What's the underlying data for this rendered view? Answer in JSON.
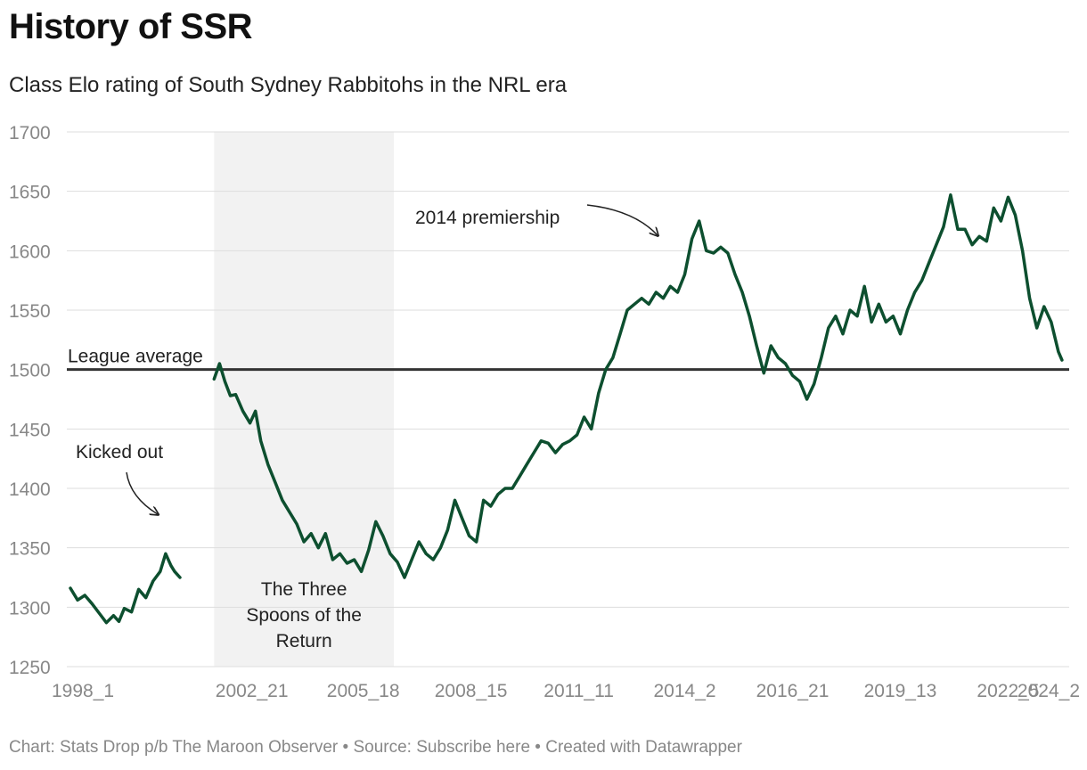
{
  "title": "History of SSR",
  "subtitle": "Class Elo rating of South Sydney Rabbitohs in the NRL era",
  "footer": "Chart: Stats Drop p/b The Maroon Observer • Source: Subscribe here • Created with Datawrapper",
  "colors": {
    "line": "#0d4f2f",
    "reference": "#333333",
    "shade": "#f2f2f2",
    "grid": "#dddddd"
  },
  "chart_data": {
    "type": "line",
    "title": "History of SSR",
    "subtitle": "Class Elo rating of South Sydney Rabbitohs in the NRL era",
    "xlabel": "",
    "ylabel": "",
    "ylim": [
      1250,
      1700
    ],
    "y_ticks": [
      1250,
      1300,
      1350,
      1400,
      1450,
      1500,
      1550,
      1600,
      1650,
      1700
    ],
    "x_ticks": [
      "1998_1",
      "2002_21",
      "2005_18",
      "2008_15",
      "2011_11",
      "2014_2",
      "2016_21",
      "2019_13",
      "2022_5",
      "2024_2"
    ],
    "grid": true,
    "reference_line": {
      "value": 1500,
      "label": "League average"
    },
    "shaded_region": {
      "from": "2002_1",
      "to": "2007_1",
      "label": "The Three Spoons of the Return"
    },
    "annotations": [
      {
        "text": "Kicked out",
        "x": "2002_1",
        "y": 1375
      },
      {
        "text": "2014 premiership",
        "x": "2014_26",
        "y": 1620
      }
    ],
    "series": [
      {
        "segments": [
          [
            [
              1998.0,
              1316
            ],
            [
              1998.2,
              1306
            ],
            [
              1998.4,
              1310
            ],
            [
              1998.6,
              1303
            ],
            [
              1998.8,
              1295
            ],
            [
              1999.0,
              1287
            ],
            [
              1999.2,
              1293
            ],
            [
              1999.35,
              1288
            ],
            [
              1999.5,
              1299
            ],
            [
              1999.7,
              1296
            ],
            [
              1999.9,
              1315
            ],
            [
              2000.1,
              1308
            ],
            [
              2000.3,
              1322
            ],
            [
              2000.5,
              1330
            ],
            [
              2000.65,
              1345
            ],
            [
              2000.8,
              1335
            ],
            [
              2000.9,
              1330
            ],
            [
              2001.05,
              1325
            ]
          ],
          [
            [
              2002.0,
              1492
            ],
            [
              2002.15,
              1505
            ],
            [
              2002.3,
              1490
            ],
            [
              2002.45,
              1478
            ],
            [
              2002.6,
              1479
            ],
            [
              2002.8,
              1465
            ],
            [
              2003.0,
              1455
            ],
            [
              2003.15,
              1465
            ],
            [
              2003.3,
              1440
            ],
            [
              2003.5,
              1420
            ],
            [
              2003.7,
              1405
            ],
            [
              2003.9,
              1390
            ],
            [
              2004.1,
              1380
            ],
            [
              2004.3,
              1370
            ],
            [
              2004.5,
              1355
            ],
            [
              2004.7,
              1362
            ],
            [
              2004.9,
              1350
            ],
            [
              2005.1,
              1362
            ],
            [
              2005.3,
              1340
            ],
            [
              2005.5,
              1345
            ],
            [
              2005.7,
              1337
            ],
            [
              2005.9,
              1340
            ],
            [
              2006.1,
              1330
            ],
            [
              2006.3,
              1348
            ],
            [
              2006.5,
              1372
            ],
            [
              2006.7,
              1360
            ],
            [
              2006.9,
              1345
            ],
            [
              2007.1,
              1338
            ],
            [
              2007.3,
              1325
            ],
            [
              2007.5,
              1340
            ],
            [
              2007.7,
              1355
            ],
            [
              2007.9,
              1345
            ],
            [
              2008.1,
              1340
            ],
            [
              2008.3,
              1350
            ],
            [
              2008.5,
              1365
            ],
            [
              2008.7,
              1390
            ],
            [
              2008.9,
              1375
            ],
            [
              2009.1,
              1360
            ],
            [
              2009.3,
              1355
            ],
            [
              2009.5,
              1390
            ],
            [
              2009.7,
              1385
            ],
            [
              2009.9,
              1395
            ],
            [
              2010.1,
              1400
            ],
            [
              2010.3,
              1400
            ],
            [
              2010.5,
              1410
            ],
            [
              2010.7,
              1420
            ],
            [
              2010.9,
              1430
            ],
            [
              2011.1,
              1440
            ],
            [
              2011.3,
              1438
            ],
            [
              2011.5,
              1430
            ],
            [
              2011.7,
              1437
            ],
            [
              2011.9,
              1440
            ],
            [
              2012.1,
              1445
            ],
            [
              2012.3,
              1460
            ],
            [
              2012.5,
              1450
            ],
            [
              2012.7,
              1480
            ],
            [
              2012.9,
              1500
            ],
            [
              2013.1,
              1510
            ],
            [
              2013.3,
              1530
            ],
            [
              2013.5,
              1550
            ],
            [
              2013.7,
              1555
            ],
            [
              2013.9,
              1560
            ],
            [
              2014.1,
              1555
            ],
            [
              2014.3,
              1565
            ],
            [
              2014.5,
              1560
            ],
            [
              2014.7,
              1570
            ],
            [
              2014.9,
              1565
            ],
            [
              2015.1,
              1580
            ],
            [
              2015.3,
              1610
            ],
            [
              2015.5,
              1625
            ],
            [
              2015.7,
              1600
            ],
            [
              2015.9,
              1598
            ],
            [
              2016.1,
              1603
            ],
            [
              2016.3,
              1598
            ],
            [
              2016.5,
              1580
            ],
            [
              2016.7,
              1565
            ],
            [
              2016.9,
              1545
            ],
            [
              2017.1,
              1520
            ],
            [
              2017.3,
              1497
            ],
            [
              2017.5,
              1520
            ],
            [
              2017.7,
              1510
            ],
            [
              2017.9,
              1505
            ],
            [
              2018.1,
              1495
            ],
            [
              2018.3,
              1490
            ],
            [
              2018.5,
              1475
            ],
            [
              2018.7,
              1488
            ],
            [
              2018.9,
              1510
            ],
            [
              2019.1,
              1535
            ],
            [
              2019.3,
              1545
            ],
            [
              2019.5,
              1530
            ],
            [
              2019.7,
              1550
            ],
            [
              2019.9,
              1545
            ],
            [
              2020.1,
              1570
            ],
            [
              2020.3,
              1540
            ],
            [
              2020.5,
              1555
            ],
            [
              2020.7,
              1540
            ],
            [
              2020.9,
              1545
            ],
            [
              2021.1,
              1530
            ],
            [
              2021.3,
              1550
            ],
            [
              2021.5,
              1565
            ],
            [
              2021.7,
              1575
            ],
            [
              2021.9,
              1590
            ],
            [
              2022.1,
              1605
            ],
            [
              2022.3,
              1620
            ],
            [
              2022.5,
              1647
            ],
            [
              2022.7,
              1618
            ],
            [
              2022.9,
              1618
            ],
            [
              2023.1,
              1605
            ],
            [
              2023.3,
              1612
            ],
            [
              2023.5,
              1608
            ],
            [
              2023.7,
              1636
            ],
            [
              2023.9,
              1625
            ],
            [
              2024.1,
              1645
            ],
            [
              2024.3,
              1630
            ],
            [
              2024.5,
              1600
            ],
            [
              2024.7,
              1560
            ],
            [
              2024.9,
              1535
            ],
            [
              2025.1,
              1553
            ],
            [
              2025.3,
              1540
            ],
            [
              2025.5,
              1515
            ],
            [
              2025.6,
              1508
            ]
          ]
        ]
      }
    ]
  }
}
